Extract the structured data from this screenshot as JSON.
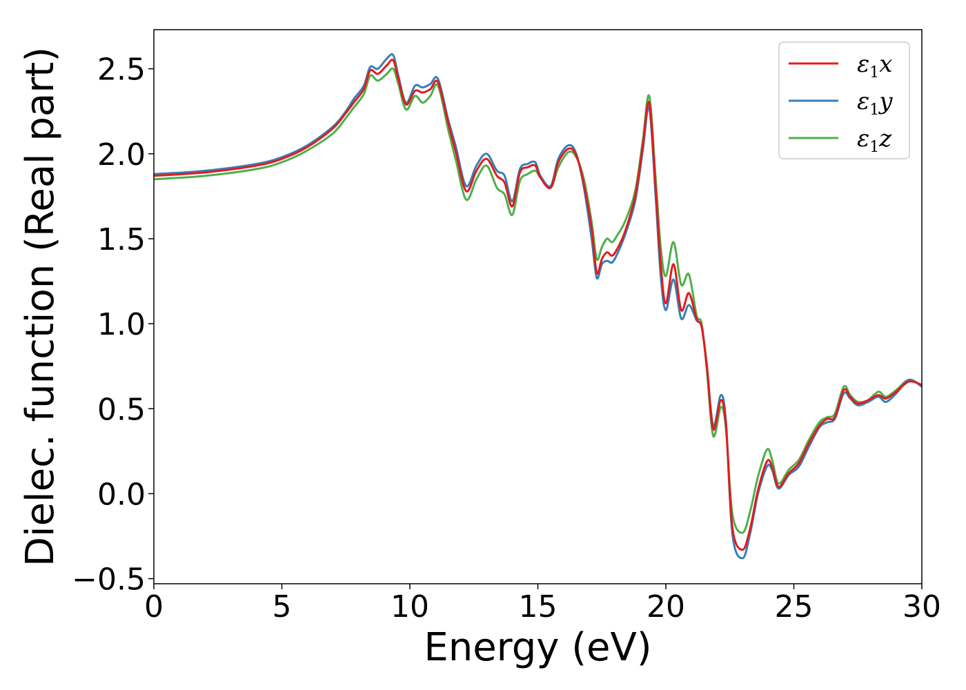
{
  "chart_data": {
    "type": "line",
    "title": "",
    "xlabel": "Energy (eV)",
    "ylabel": "Dielec. function (Real part)",
    "xlim": [
      0,
      30
    ],
    "ylim": [
      -0.53,
      2.73
    ],
    "xticks": [
      0,
      5,
      10,
      15,
      20,
      25,
      30
    ],
    "xtick_labels": [
      "0",
      "5",
      "10",
      "15",
      "20",
      "25",
      "30"
    ],
    "yticks": [
      -0.5,
      0.0,
      0.5,
      1.0,
      1.5,
      2.0,
      2.5
    ],
    "ytick_labels": [
      "−0.5",
      "0.0",
      "0.5",
      "1.0",
      "1.5",
      "2.0",
      "2.5"
    ],
    "grid": false,
    "legend_position": "top-right",
    "series": [
      {
        "name": "ε1x",
        "legend": {
          "base": "ε",
          "sub": "1",
          "var": "x"
        },
        "color": "#e41a1c",
        "x": [
          0,
          2,
          4,
          5,
          6,
          7,
          7.5,
          7.8,
          8.2,
          8.45,
          8.75,
          9.1,
          9.35,
          9.55,
          9.85,
          10.2,
          10.5,
          10.8,
          11.1,
          11.5,
          11.8,
          12.2,
          12.6,
          13.0,
          13.4,
          13.7,
          14.0,
          14.3,
          14.6,
          14.9,
          15.1,
          15.5,
          15.8,
          16.2,
          16.5,
          16.8,
          17.1,
          17.3,
          17.5,
          17.7,
          17.9,
          18.1,
          18.4,
          18.8,
          19.1,
          19.35,
          19.6,
          19.8,
          20.0,
          20.3,
          20.6,
          20.9,
          21.2,
          21.4,
          21.6,
          21.85,
          22.15,
          22.35,
          22.6,
          23.0,
          23.3,
          23.6,
          23.95,
          24.15,
          24.4,
          24.8,
          25.2,
          25.6,
          26.0,
          26.3,
          26.6,
          26.95,
          27.2,
          27.5,
          27.9,
          28.3,
          28.6,
          29.0,
          29.5,
          30.0
        ],
        "values": [
          1.87,
          1.89,
          1.93,
          1.97,
          2.04,
          2.15,
          2.24,
          2.3,
          2.38,
          2.49,
          2.47,
          2.52,
          2.55,
          2.44,
          2.29,
          2.37,
          2.36,
          2.38,
          2.42,
          2.18,
          2.01,
          1.78,
          1.9,
          1.97,
          1.87,
          1.83,
          1.69,
          1.89,
          1.92,
          1.93,
          1.86,
          1.8,
          1.95,
          2.03,
          1.99,
          1.82,
          1.56,
          1.3,
          1.38,
          1.42,
          1.4,
          1.44,
          1.54,
          1.75,
          2.05,
          2.3,
          1.8,
          1.35,
          1.12,
          1.35,
          1.08,
          1.18,
          1.03,
          0.98,
          0.75,
          0.38,
          0.55,
          0.4,
          -0.2,
          -0.33,
          -0.2,
          0.02,
          0.19,
          0.16,
          0.04,
          0.12,
          0.18,
          0.3,
          0.4,
          0.44,
          0.45,
          0.61,
          0.57,
          0.53,
          0.55,
          0.58,
          0.56,
          0.6,
          0.66,
          0.64
        ]
      },
      {
        "name": "ε1y",
        "legend": {
          "base": "ε",
          "sub": "1",
          "var": "y"
        },
        "color": "#377eb8",
        "x": [
          0,
          2,
          4,
          5,
          6,
          7,
          7.5,
          7.8,
          8.2,
          8.45,
          8.75,
          9.1,
          9.35,
          9.55,
          9.85,
          10.2,
          10.5,
          10.8,
          11.1,
          11.5,
          11.8,
          12.2,
          12.6,
          13.0,
          13.4,
          13.7,
          14.0,
          14.3,
          14.6,
          14.9,
          15.1,
          15.5,
          15.8,
          16.2,
          16.5,
          16.8,
          17.1,
          17.3,
          17.5,
          17.7,
          17.9,
          18.1,
          18.4,
          18.8,
          19.1,
          19.35,
          19.6,
          19.8,
          20.0,
          20.3,
          20.6,
          20.9,
          21.2,
          21.4,
          21.6,
          21.85,
          22.15,
          22.35,
          22.6,
          23.0,
          23.3,
          23.6,
          23.95,
          24.15,
          24.4,
          24.8,
          25.2,
          25.6,
          26.0,
          26.3,
          26.6,
          26.95,
          27.2,
          27.5,
          27.9,
          28.3,
          28.6,
          29.0,
          29.5,
          30.0
        ],
        "values": [
          1.88,
          1.9,
          1.94,
          1.98,
          2.05,
          2.16,
          2.25,
          2.32,
          2.4,
          2.51,
          2.5,
          2.56,
          2.58,
          2.46,
          2.3,
          2.4,
          2.39,
          2.41,
          2.44,
          2.2,
          2.04,
          1.81,
          1.93,
          2.0,
          1.9,
          1.87,
          1.72,
          1.91,
          1.94,
          1.95,
          1.87,
          1.81,
          1.97,
          2.05,
          2.0,
          1.8,
          1.5,
          1.27,
          1.35,
          1.37,
          1.36,
          1.41,
          1.52,
          1.72,
          2.02,
          2.27,
          1.75,
          1.28,
          1.08,
          1.26,
          1.03,
          1.11,
          1.02,
          0.98,
          0.76,
          0.4,
          0.58,
          0.42,
          -0.24,
          -0.38,
          -0.23,
          0.0,
          0.16,
          0.14,
          0.03,
          0.11,
          0.16,
          0.28,
          0.39,
          0.42,
          0.44,
          0.59,
          0.56,
          0.52,
          0.54,
          0.57,
          0.54,
          0.59,
          0.67,
          0.63
        ]
      },
      {
        "name": "ε1z",
        "legend": {
          "base": "ε",
          "sub": "1",
          "var": "z"
        },
        "color": "#4daf4a",
        "x": [
          0,
          2,
          4,
          5,
          6,
          7,
          7.5,
          7.8,
          8.2,
          8.45,
          8.75,
          9.1,
          9.35,
          9.55,
          9.85,
          10.2,
          10.5,
          10.8,
          11.1,
          11.5,
          11.8,
          12.2,
          12.6,
          13.0,
          13.4,
          13.7,
          14.0,
          14.3,
          14.6,
          14.9,
          15.1,
          15.5,
          15.8,
          16.2,
          16.5,
          16.8,
          17.1,
          17.3,
          17.5,
          17.7,
          17.9,
          18.1,
          18.4,
          18.8,
          19.1,
          19.35,
          19.6,
          19.8,
          20.0,
          20.3,
          20.6,
          20.9,
          21.2,
          21.4,
          21.6,
          21.85,
          22.15,
          22.35,
          22.6,
          23.0,
          23.3,
          23.6,
          23.95,
          24.15,
          24.4,
          24.8,
          25.2,
          25.6,
          26.0,
          26.3,
          26.6,
          26.95,
          27.2,
          27.5,
          27.9,
          28.3,
          28.6,
          29.0,
          29.5,
          30.0
        ],
        "values": [
          1.85,
          1.87,
          1.91,
          1.95,
          2.02,
          2.12,
          2.21,
          2.27,
          2.35,
          2.46,
          2.43,
          2.47,
          2.5,
          2.41,
          2.26,
          2.34,
          2.3,
          2.34,
          2.4,
          2.14,
          1.96,
          1.73,
          1.85,
          1.93,
          1.8,
          1.76,
          1.64,
          1.84,
          1.88,
          1.9,
          1.86,
          1.8,
          1.92,
          2.01,
          1.98,
          1.85,
          1.6,
          1.38,
          1.45,
          1.5,
          1.48,
          1.52,
          1.6,
          1.78,
          2.08,
          2.34,
          1.86,
          1.45,
          1.28,
          1.48,
          1.23,
          1.29,
          1.05,
          1.0,
          0.73,
          0.34,
          0.51,
          0.38,
          -0.12,
          -0.23,
          -0.1,
          0.1,
          0.26,
          0.2,
          0.06,
          0.14,
          0.2,
          0.32,
          0.42,
          0.45,
          0.47,
          0.63,
          0.58,
          0.54,
          0.55,
          0.6,
          0.57,
          0.61,
          0.67,
          0.63
        ]
      }
    ]
  }
}
